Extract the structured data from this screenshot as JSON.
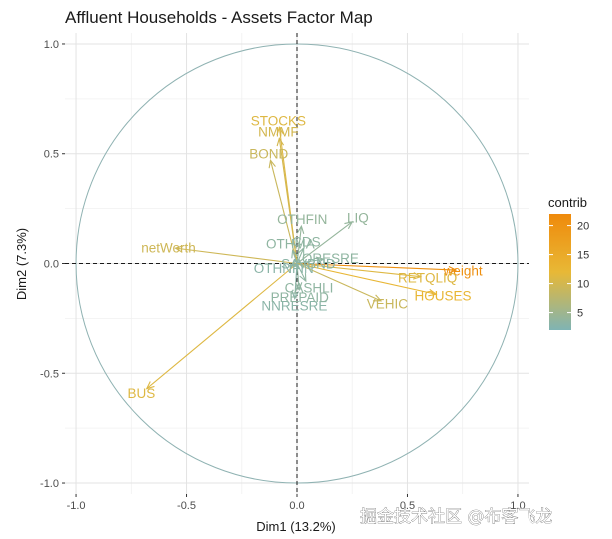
{
  "chart_data": {
    "type": "scatter",
    "subtype": "pca-variable-correlation-circle",
    "title": "Affluent Households - Assets Factor Map",
    "xlabel": "Dim1 (13.2%)",
    "ylabel": "Dim2 (7.3%)",
    "xlim": [
      -1.05,
      1.05
    ],
    "ylim": [
      -1.05,
      1.05
    ],
    "x_ticks": [
      {
        "value": -1.0,
        "label": "-1.0"
      },
      {
        "value": -0.5,
        "label": "-0.5"
      },
      {
        "value": 0.0,
        "label": "0.0"
      },
      {
        "value": 0.5,
        "label": "0.5"
      },
      {
        "value": 1.0,
        "label": "1.0"
      }
    ],
    "y_ticks": [
      {
        "value": -1.0,
        "label": "-1.0"
      },
      {
        "value": -0.5,
        "label": "-0.5"
      },
      {
        "value": 0.0,
        "label": "0.0"
      },
      {
        "value": 0.5,
        "label": "0.5"
      },
      {
        "value": 1.0,
        "label": "1.0"
      }
    ],
    "grid": true,
    "reference_lines": {
      "x": 0,
      "y": 0,
      "style": "dashed"
    },
    "unit_circle": true,
    "legend": {
      "title": "contrib",
      "placement": "right",
      "type": "gradient",
      "min": 2,
      "max": 22,
      "ticks": [
        5,
        10,
        15,
        20
      ],
      "colors": [
        "#7FB4B4",
        "#E8B836",
        "#EF8A0B"
      ]
    },
    "variables": [
      {
        "name": "STOCKS",
        "x": -0.08,
        "y": 0.62,
        "contrib": 11.0
      },
      {
        "name": "NMMF",
        "x": -0.08,
        "y": 0.57,
        "contrib": 10.0
      },
      {
        "name": "BOND",
        "x": -0.12,
        "y": 0.47,
        "contrib": 9.0
      },
      {
        "name": "OTHFIN",
        "x": 0.02,
        "y": 0.17,
        "contrib": 4.0
      },
      {
        "name": "LIQ",
        "x": 0.25,
        "y": 0.19,
        "contrib": 4.0
      },
      {
        "name": "CDS",
        "x": 0.03,
        "y": 0.07,
        "contrib": 3.5
      },
      {
        "name": "OTHMA",
        "x": -0.02,
        "y": 0.06,
        "contrib": 3.5
      },
      {
        "name": "netWorth",
        "x": -0.55,
        "y": 0.07,
        "contrib": 9.5
      },
      {
        "name": "OTHNFIN",
        "x": -0.03,
        "y": -0.01,
        "contrib": 3.0
      },
      {
        "name": "SAVBND",
        "x": 0.02,
        "y": 0.0,
        "contrib": 3.0
      },
      {
        "name": "ORESRE",
        "x": 0.12,
        "y": 0.02,
        "contrib": 3.5
      },
      {
        "name": "weight",
        "x": 0.72,
        "y": -0.03,
        "contrib": 21.0
      },
      {
        "name": "RETQLIQ",
        "x": 0.56,
        "y": -0.06,
        "contrib": 11.0
      },
      {
        "name": "HOUSES",
        "x": 0.63,
        "y": -0.14,
        "contrib": 12.5
      },
      {
        "name": "VEHIC",
        "x": 0.38,
        "y": -0.17,
        "contrib": 9.0
      },
      {
        "name": "CASHLI",
        "x": 0.04,
        "y": -0.08,
        "contrib": 3.5
      },
      {
        "name": "NNRESRE",
        "x": -0.01,
        "y": -0.16,
        "contrib": 3.0
      },
      {
        "name": "PREPAID",
        "x": 0.01,
        "y": -0.12,
        "contrib": 3.5
      },
      {
        "name": "BUS",
        "x": -0.68,
        "y": -0.57,
        "contrib": 11.0
      }
    ]
  },
  "watermark": "掘金技术社区 @布客飞龙"
}
